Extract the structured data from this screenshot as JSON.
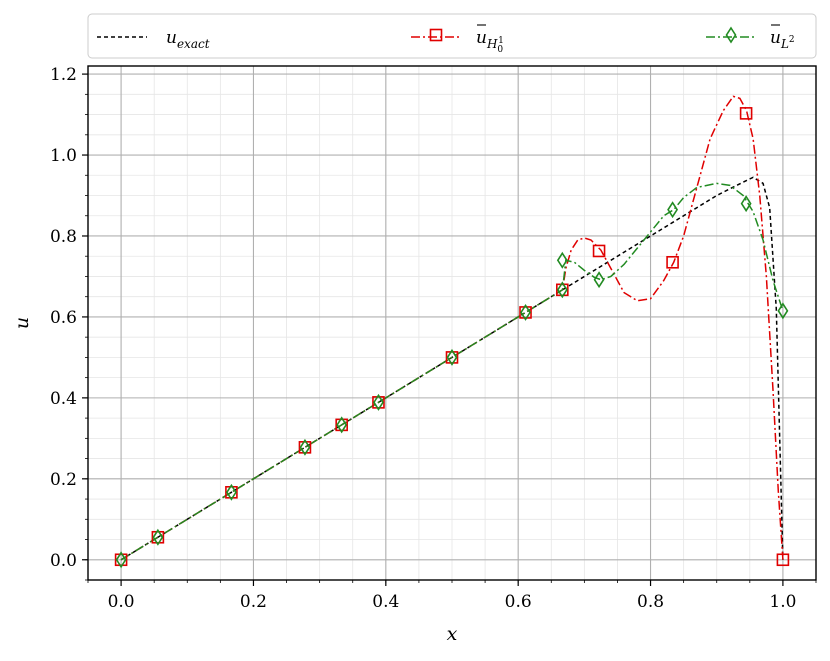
{
  "chart_data": {
    "type": "line",
    "xlabel": "x",
    "ylabel": "u",
    "xlim": [
      -0.05,
      1.05
    ],
    "ylim": [
      -0.05,
      1.22
    ],
    "x_ticks": [
      0.0,
      0.2,
      0.4,
      0.6,
      0.8,
      1.0
    ],
    "x_tick_labels": [
      "0.0",
      "0.2",
      "0.4",
      "0.6",
      "0.8",
      "1.0"
    ],
    "y_ticks": [
      0.0,
      0.2,
      0.4,
      0.6,
      0.8,
      1.0,
      1.2
    ],
    "y_tick_labels": [
      "0.0",
      "0.2",
      "0.4",
      "0.6",
      "0.8",
      "1.0",
      "1.2"
    ],
    "x_minor_step": 0.05,
    "y_minor_step": 0.05,
    "grid": true,
    "legend_position": "top, spanning the width above the plot",
    "legend": [
      {
        "label_base": "u",
        "label_sub": "exact",
        "bar": false,
        "color": "#000000",
        "dash": "4,3",
        "marker": "none"
      },
      {
        "label_base": "u",
        "label_sub": "H",
        "label_subsub": "0",
        "label_subsup": "1",
        "bar": true,
        "color": "#e00000",
        "dash": "9,3,2,3",
        "marker": "square"
      },
      {
        "label_base": "u",
        "label_sub": "L",
        "label_subsup": "2",
        "bar": true,
        "color": "#228b22",
        "dash": "9,3,2,3",
        "marker": "diamond"
      }
    ],
    "series": [
      {
        "name": "u_exact",
        "color": "#000000",
        "dash": "4,3",
        "marker": "none",
        "x": [
          0.0,
          0.1,
          0.2,
          0.3,
          0.4,
          0.5,
          0.6,
          0.667,
          0.7,
          0.75,
          0.8,
          0.85,
          0.9,
          0.93,
          0.955,
          0.97,
          0.98,
          0.99,
          1.0
        ],
        "y": [
          0.0,
          0.1,
          0.2,
          0.3,
          0.4,
          0.5,
          0.6,
          0.667,
          0.7,
          0.75,
          0.8,
          0.85,
          0.9,
          0.925,
          0.945,
          0.93,
          0.87,
          0.62,
          0.0
        ]
      },
      {
        "name": "u_H01",
        "color": "#e00000",
        "dash": "9,3,2,3",
        "marker": "square",
        "x": [
          0.0,
          0.1,
          0.2,
          0.3,
          0.4,
          0.5,
          0.6,
          0.667,
          0.672,
          0.68,
          0.69,
          0.7,
          0.71,
          0.725,
          0.74,
          0.76,
          0.78,
          0.8,
          0.82,
          0.835,
          0.85,
          0.87,
          0.89,
          0.91,
          0.925,
          0.935,
          0.945,
          0.955,
          0.965,
          0.975,
          0.985,
          0.993,
          1.0
        ],
        "y": [
          0.0,
          0.1,
          0.2,
          0.3,
          0.4,
          0.5,
          0.6,
          0.667,
          0.72,
          0.765,
          0.79,
          0.795,
          0.79,
          0.765,
          0.72,
          0.66,
          0.64,
          0.645,
          0.69,
          0.735,
          0.8,
          0.92,
          1.04,
          1.11,
          1.145,
          1.14,
          1.11,
          1.04,
          0.9,
          0.7,
          0.42,
          0.17,
          0.0
        ],
        "marker_x": [
          0.0,
          0.0556,
          0.1667,
          0.2778,
          0.3333,
          0.3889,
          0.5,
          0.6111,
          0.6667,
          0.7222,
          0.8333,
          0.9444,
          1.0
        ],
        "marker_y": [
          0.0,
          0.0556,
          0.1667,
          0.2778,
          0.3333,
          0.3889,
          0.5,
          0.6111,
          0.667,
          0.763,
          0.735,
          1.103,
          0.0
        ]
      },
      {
        "name": "u_L2",
        "color": "#228b22",
        "dash": "9,3,2,3",
        "marker": "diamond",
        "x": [
          0.0,
          0.1,
          0.2,
          0.3,
          0.4,
          0.5,
          0.6,
          0.667,
          0.672,
          0.685,
          0.7,
          0.715,
          0.725,
          0.74,
          0.76,
          0.78,
          0.8,
          0.82,
          0.835,
          0.85,
          0.87,
          0.9,
          0.92,
          0.94,
          0.955,
          0.97,
          0.985,
          1.0
        ],
        "y": [
          0.0,
          0.1,
          0.2,
          0.3,
          0.4,
          0.5,
          0.6,
          0.667,
          0.74,
          0.735,
          0.715,
          0.698,
          0.692,
          0.7,
          0.73,
          0.77,
          0.81,
          0.85,
          0.865,
          0.895,
          0.92,
          0.93,
          0.925,
          0.9,
          0.86,
          0.79,
          0.69,
          0.615
        ],
        "marker_x": [
          0.0,
          0.0556,
          0.1667,
          0.2778,
          0.3333,
          0.3889,
          0.5,
          0.6111,
          0.6667,
          0.6667,
          0.7222,
          0.8333,
          0.9444,
          1.0
        ],
        "marker_y": [
          0.0,
          0.0556,
          0.1667,
          0.2778,
          0.3333,
          0.3889,
          0.5,
          0.6111,
          0.667,
          0.74,
          0.692,
          0.865,
          0.88,
          0.615
        ]
      }
    ]
  }
}
